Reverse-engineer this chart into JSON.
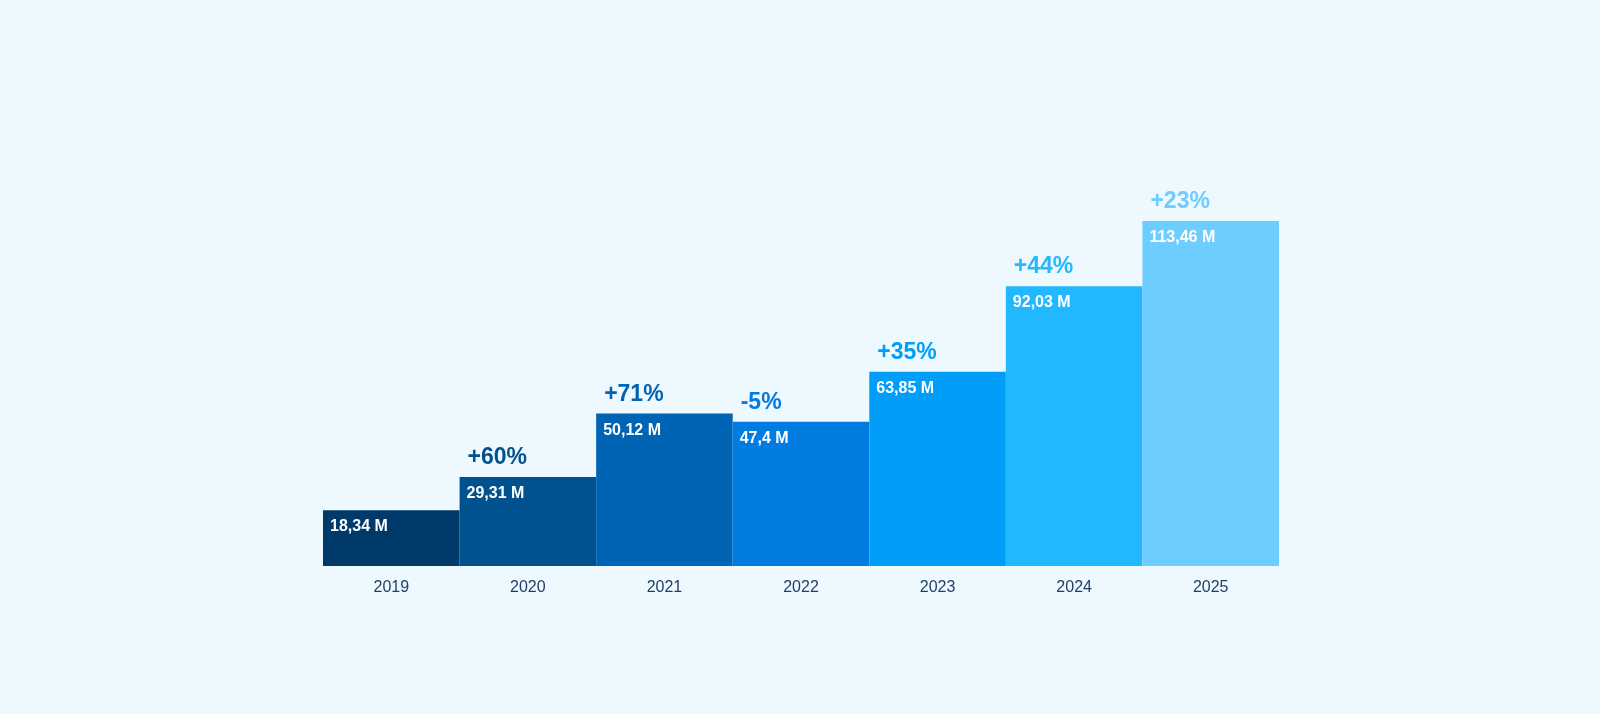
{
  "chart_data": {
    "type": "bar",
    "categories": [
      "2019",
      "2020",
      "2021",
      "2022",
      "2023",
      "2024",
      "2025"
    ],
    "values": [
      18.34,
      29.31,
      50.12,
      47.4,
      63.85,
      92.03,
      113.46
    ],
    "value_labels": [
      "18,34 M",
      "29,31 M",
      "50,12 M",
      "47,4 M",
      "63,85 M",
      "92,03 M",
      "113,46 M"
    ],
    "colors": [
      "#003a6b",
      "#00528f",
      "#0064b4",
      "#007ce0",
      "#009ef8",
      "#22b8ff",
      "#6dcdff"
    ],
    "annotations": [
      {
        "text": "+60%",
        "x": "2020",
        "y": 29.31
      },
      {
        "text": "+71%",
        "x": "2021",
        "y": 50.12
      },
      {
        "text": "-5%",
        "x": "2022",
        "y": 47.4
      },
      {
        "text": "+35%",
        "x": "2023",
        "y": 63.85
      },
      {
        "text": "+44%",
        "x": "2024",
        "y": 92.03
      },
      {
        "text": "+23%",
        "x": "2025",
        "y": 113.46
      }
    ],
    "grid": false,
    "legend": false
  }
}
